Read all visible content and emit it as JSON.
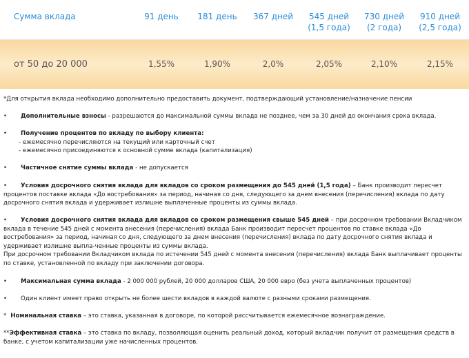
{
  "table": {
    "headers": [
      [
        "Сумма  вклада"
      ],
      [
        "91 день"
      ],
      [
        "181 день"
      ],
      [
        "367 дней"
      ],
      [
        "545 дней",
        "(1,5 года)"
      ],
      [
        "730 дней",
        "(2 года)"
      ],
      [
        "910 дней",
        "(2,5 года)"
      ]
    ],
    "rows": [
      [
        "от 50 до 20 000",
        "1,55%",
        "1,90%",
        "2,0%",
        "2,05%",
        "2,10%",
        "2,15%"
      ]
    ]
  },
  "notes": [
    {
      "text": "*Для открытия вклада необходимо дополнительно предоставить документ, подтверждающий установление/назначение пенсии"
    },
    {
      "bullet": "•",
      "bold": "Дополнительные взносы",
      "text": " - разрешаются до максимальной суммы вклада не позднее, чем за 30 дней до окончания срока вклада."
    },
    {
      "bullet": "•",
      "bold": "Получение процентов по вкладу по выбору клиента:",
      "sub": [
        "- ежемесячно перечисляются на текущий или карточный счет",
        "- ежемесячно присоединяются к основной сумме вклада (капитализация)"
      ]
    },
    {
      "bullet": "•",
      "bold": "Частичное снятие суммы вклада",
      "text": " - не допускается"
    },
    {
      "bullet": "•",
      "bold": "Условия досрочного снятия вклада для вкладов со сроком размещения до 545 дней (1,5 года)",
      "text": " – Банк производит пересчет процентов поставке вклада «До востребования» за период, начиная со дня, следующего за днем внесения (перечисления) вклада по дату досрочного снятия вклада и удерживает излишне выплаченные проценты из суммы вклада."
    },
    {
      "bullet": "•",
      "bold": "Условия досрочного снятия вклада для вкладов со сроком размещения свыше 545 дней",
      "text": " – при досрочном требовании Вкладчиком вклада в течение 545 дней с момента внесения (перечисления) вклада Банк производит пересчет процентов по ставке вклада «До востребования» за период, начиная со дня, следующего за днем внесения (перечисления) вклада по дату досрочного снятия вклада и удерживает излишне выпла-ченные проценты из суммы вклада.",
      "extra": " При досрочном требовании Вкладчиком вклада по истечении 545 дней с момента внесения (перечисления) вклада Банк выплачивает проценты по ставке, установленной по вкладу при заключении договора."
    },
    {
      "bullet": "•",
      "bold": "Максимальная сумма вклада",
      "text": " - 2 000 000 рублей, 20 000 долларов США, 20 000 евро (без учета выплаченных процентов)"
    },
    {
      "bullet": "•",
      "text": "Один клиент имеет право открыть не более шести вкладов в каждой валюте с разными сроками размещения."
    },
    {
      "bullet": "*",
      "bold": "Номинальная ставка",
      "text": " – это ставка, указанная в договоре, по которой рассчитывается ежемесячное вознаграждение."
    },
    {
      "bullet": "**",
      "bold": "Эффективная ставка",
      "text": " – это ставка по вкладу, позволяющая оценить реальный доход, который вкладчик получит от размещения средств в банке, с учетом капитализации уже начисленных процентов."
    }
  ]
}
